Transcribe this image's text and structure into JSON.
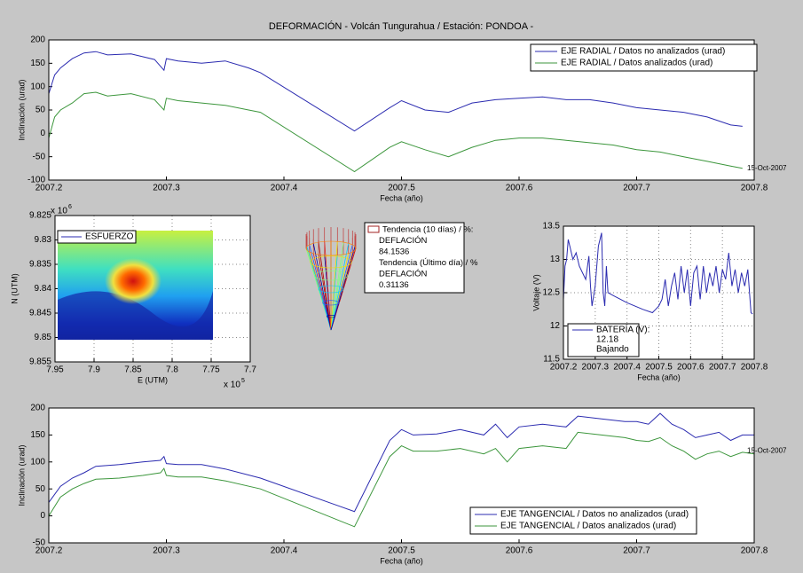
{
  "title": "DEFORMACIÓN - Volcán Tungurahua  /  Estación: PONDOA -",
  "chart_data": [
    {
      "type": "line",
      "xlabel": "Fecha (año)",
      "ylabel": "Inclinación (urad)",
      "annotation": "15-Oct-2007",
      "legend_loc": "northeast",
      "grid": false,
      "xlim": [
        2007.2,
        2007.8
      ],
      "xticks": [
        2007.2,
        2007.3,
        2007.4,
        2007.5,
        2007.6,
        2007.7,
        2007.8
      ],
      "ylim": [
        -100,
        200
      ],
      "yticks": [
        -100,
        -50,
        0,
        50,
        100,
        150,
        200
      ],
      "x": [
        2007.2,
        2007.205,
        2007.21,
        2007.22,
        2007.23,
        2007.24,
        2007.25,
        2007.27,
        2007.29,
        2007.298,
        2007.3,
        2007.31,
        2007.33,
        2007.35,
        2007.37,
        2007.38,
        2007.46,
        2007.49,
        2007.5,
        2007.52,
        2007.54,
        2007.56,
        2007.58,
        2007.6,
        2007.62,
        2007.64,
        2007.66,
        2007.68,
        2007.7,
        2007.72,
        2007.74,
        2007.76,
        2007.78,
        2007.79
      ],
      "series": [
        {
          "name": "EJE RADIAL / Datos no analizados (urad)",
          "color": "#2b2bb0",
          "values": [
            85,
            125,
            140,
            160,
            172,
            175,
            168,
            170,
            158,
            135,
            160,
            155,
            150,
            155,
            140,
            130,
            5,
            55,
            70,
            50,
            45,
            65,
            72,
            75,
            78,
            72,
            72,
            65,
            55,
            50,
            45,
            35,
            18,
            15
          ]
        },
        {
          "name": "EJE RADIAL / Datos analizados (urad)",
          "color": "#3c963c",
          "values": [
            -10,
            35,
            50,
            65,
            85,
            88,
            80,
            85,
            72,
            50,
            75,
            70,
            65,
            60,
            50,
            45,
            -82,
            -30,
            -18,
            -35,
            -50,
            -30,
            -15,
            -10,
            -10,
            -15,
            -20,
            -25,
            -35,
            -40,
            -50,
            -60,
            -70,
            -75
          ]
        }
      ]
    },
    {
      "type": "heatmap",
      "xlabel": "E (UTM)",
      "ylabel": "N (UTM)",
      "x_multiplier": "x 10",
      "x_multiplier_exp": "5",
      "y_multiplier": "x 10",
      "y_multiplier_exp": "6",
      "legend": "ESFUERZO",
      "grid": true,
      "xlim": [
        7.95,
        7.7
      ],
      "xticks": [
        7.95,
        7.9,
        7.85,
        7.8,
        7.75,
        7.7
      ],
      "ylim": [
        9.855,
        9.825
      ],
      "yticks": [
        9.825,
        9.83,
        9.835,
        9.84,
        9.845,
        9.85,
        9.855
      ]
    },
    {
      "type": "surface",
      "legend": {
        "title1": "Tendencia (10 días) / %:",
        "state1": "DEFLACIÓN",
        "value1": 84.1536,
        "title2": "Tendencia (Último día) / %",
        "state2": "DEFLACIÓN",
        "value2": 0.31136
      }
    },
    {
      "type": "line",
      "xlabel": "Fecha (año)",
      "ylabel": "Voltaje (V)",
      "legend_loc": "southwest",
      "grid": true,
      "legend_value": 12.18,
      "legend_status": "Bajando",
      "xlim": [
        2007.2,
        2007.8
      ],
      "xticks": [
        2007.2,
        2007.3,
        2007.4,
        2007.5,
        2007.6,
        2007.7,
        2007.8
      ],
      "ylim": [
        11.5,
        13.5
      ],
      "yticks": [
        11.5,
        12,
        12.5,
        13,
        13.5
      ],
      "x": [
        2007.2,
        2007.205,
        2007.21,
        2007.215,
        2007.22,
        2007.23,
        2007.24,
        2007.25,
        2007.26,
        2007.27,
        2007.28,
        2007.285,
        2007.29,
        2007.3,
        2007.31,
        2007.32,
        2007.325,
        2007.33,
        2007.335,
        2007.34,
        2007.36,
        2007.4,
        2007.45,
        2007.48,
        2007.49,
        2007.5,
        2007.51,
        2007.52,
        2007.53,
        2007.54,
        2007.55,
        2007.56,
        2007.57,
        2007.58,
        2007.59,
        2007.6,
        2007.61,
        2007.62,
        2007.63,
        2007.64,
        2007.65,
        2007.66,
        2007.67,
        2007.68,
        2007.69,
        2007.7,
        2007.71,
        2007.72,
        2007.73,
        2007.74,
        2007.75,
        2007.76,
        2007.77,
        2007.78,
        2007.79,
        2007.795
      ],
      "series": [
        {
          "name": "BATERÍA (V):",
          "color": "#2b2bb0",
          "values": [
            12.4,
            12.9,
            13.0,
            13.3,
            13.2,
            13.0,
            13.1,
            12.9,
            12.8,
            12.7,
            13.05,
            12.6,
            12.3,
            12.6,
            13.2,
            13.4,
            12.5,
            12.3,
            12.9,
            12.5,
            12.45,
            12.35,
            12.25,
            12.2,
            12.25,
            12.3,
            12.4,
            12.7,
            12.3,
            12.6,
            12.8,
            12.4,
            12.9,
            12.5,
            12.85,
            12.3,
            12.8,
            12.9,
            12.4,
            12.9,
            12.5,
            12.8,
            12.6,
            12.9,
            12.5,
            12.85,
            12.7,
            13.1,
            12.6,
            12.85,
            12.5,
            12.8,
            12.6,
            12.85,
            12.2,
            12.18
          ]
        }
      ]
    },
    {
      "type": "line",
      "xlabel": "Fecha (año)",
      "ylabel": "Inclinación (urad)",
      "annotation": "15-Oct-2007",
      "legend_loc": "southeast",
      "grid": false,
      "xlim": [
        2007.2,
        2007.8
      ],
      "xticks": [
        2007.2,
        2007.3,
        2007.4,
        2007.5,
        2007.6,
        2007.7,
        2007.8
      ],
      "ylim": [
        -50,
        200
      ],
      "yticks": [
        -50,
        0,
        50,
        100,
        150,
        200
      ],
      "x": [
        2007.2,
        2007.21,
        2007.22,
        2007.23,
        2007.24,
        2007.26,
        2007.28,
        2007.295,
        2007.298,
        2007.3,
        2007.31,
        2007.33,
        2007.35,
        2007.38,
        2007.46,
        2007.49,
        2007.5,
        2007.51,
        2007.53,
        2007.55,
        2007.57,
        2007.58,
        2007.59,
        2007.6,
        2007.62,
        2007.64,
        2007.65,
        2007.67,
        2007.69,
        2007.7,
        2007.71,
        2007.72,
        2007.73,
        2007.74,
        2007.75,
        2007.76,
        2007.77,
        2007.78,
        2007.79,
        2007.8
      ],
      "series": [
        {
          "name": "EJE TANGENCIAL / Datos no analizados (urad)",
          "color": "#2b2bb0",
          "values": [
            25,
            55,
            70,
            80,
            92,
            95,
            100,
            103,
            110,
            97,
            95,
            95,
            87,
            70,
            8,
            140,
            160,
            150,
            152,
            160,
            150,
            170,
            145,
            165,
            170,
            165,
            185,
            180,
            175,
            175,
            170,
            190,
            170,
            160,
            145,
            150,
            155,
            140,
            150,
            150
          ]
        },
        {
          "name": "EJE TANGENCIAL / Datos analizados (urad)",
          "color": "#3c963c",
          "values": [
            0,
            35,
            50,
            60,
            68,
            70,
            75,
            80,
            88,
            75,
            72,
            72,
            65,
            50,
            -20,
            110,
            130,
            120,
            120,
            125,
            115,
            125,
            100,
            125,
            130,
            125,
            155,
            150,
            145,
            140,
            138,
            145,
            130,
            120,
            105,
            115,
            120,
            110,
            118,
            115
          ]
        }
      ]
    }
  ]
}
